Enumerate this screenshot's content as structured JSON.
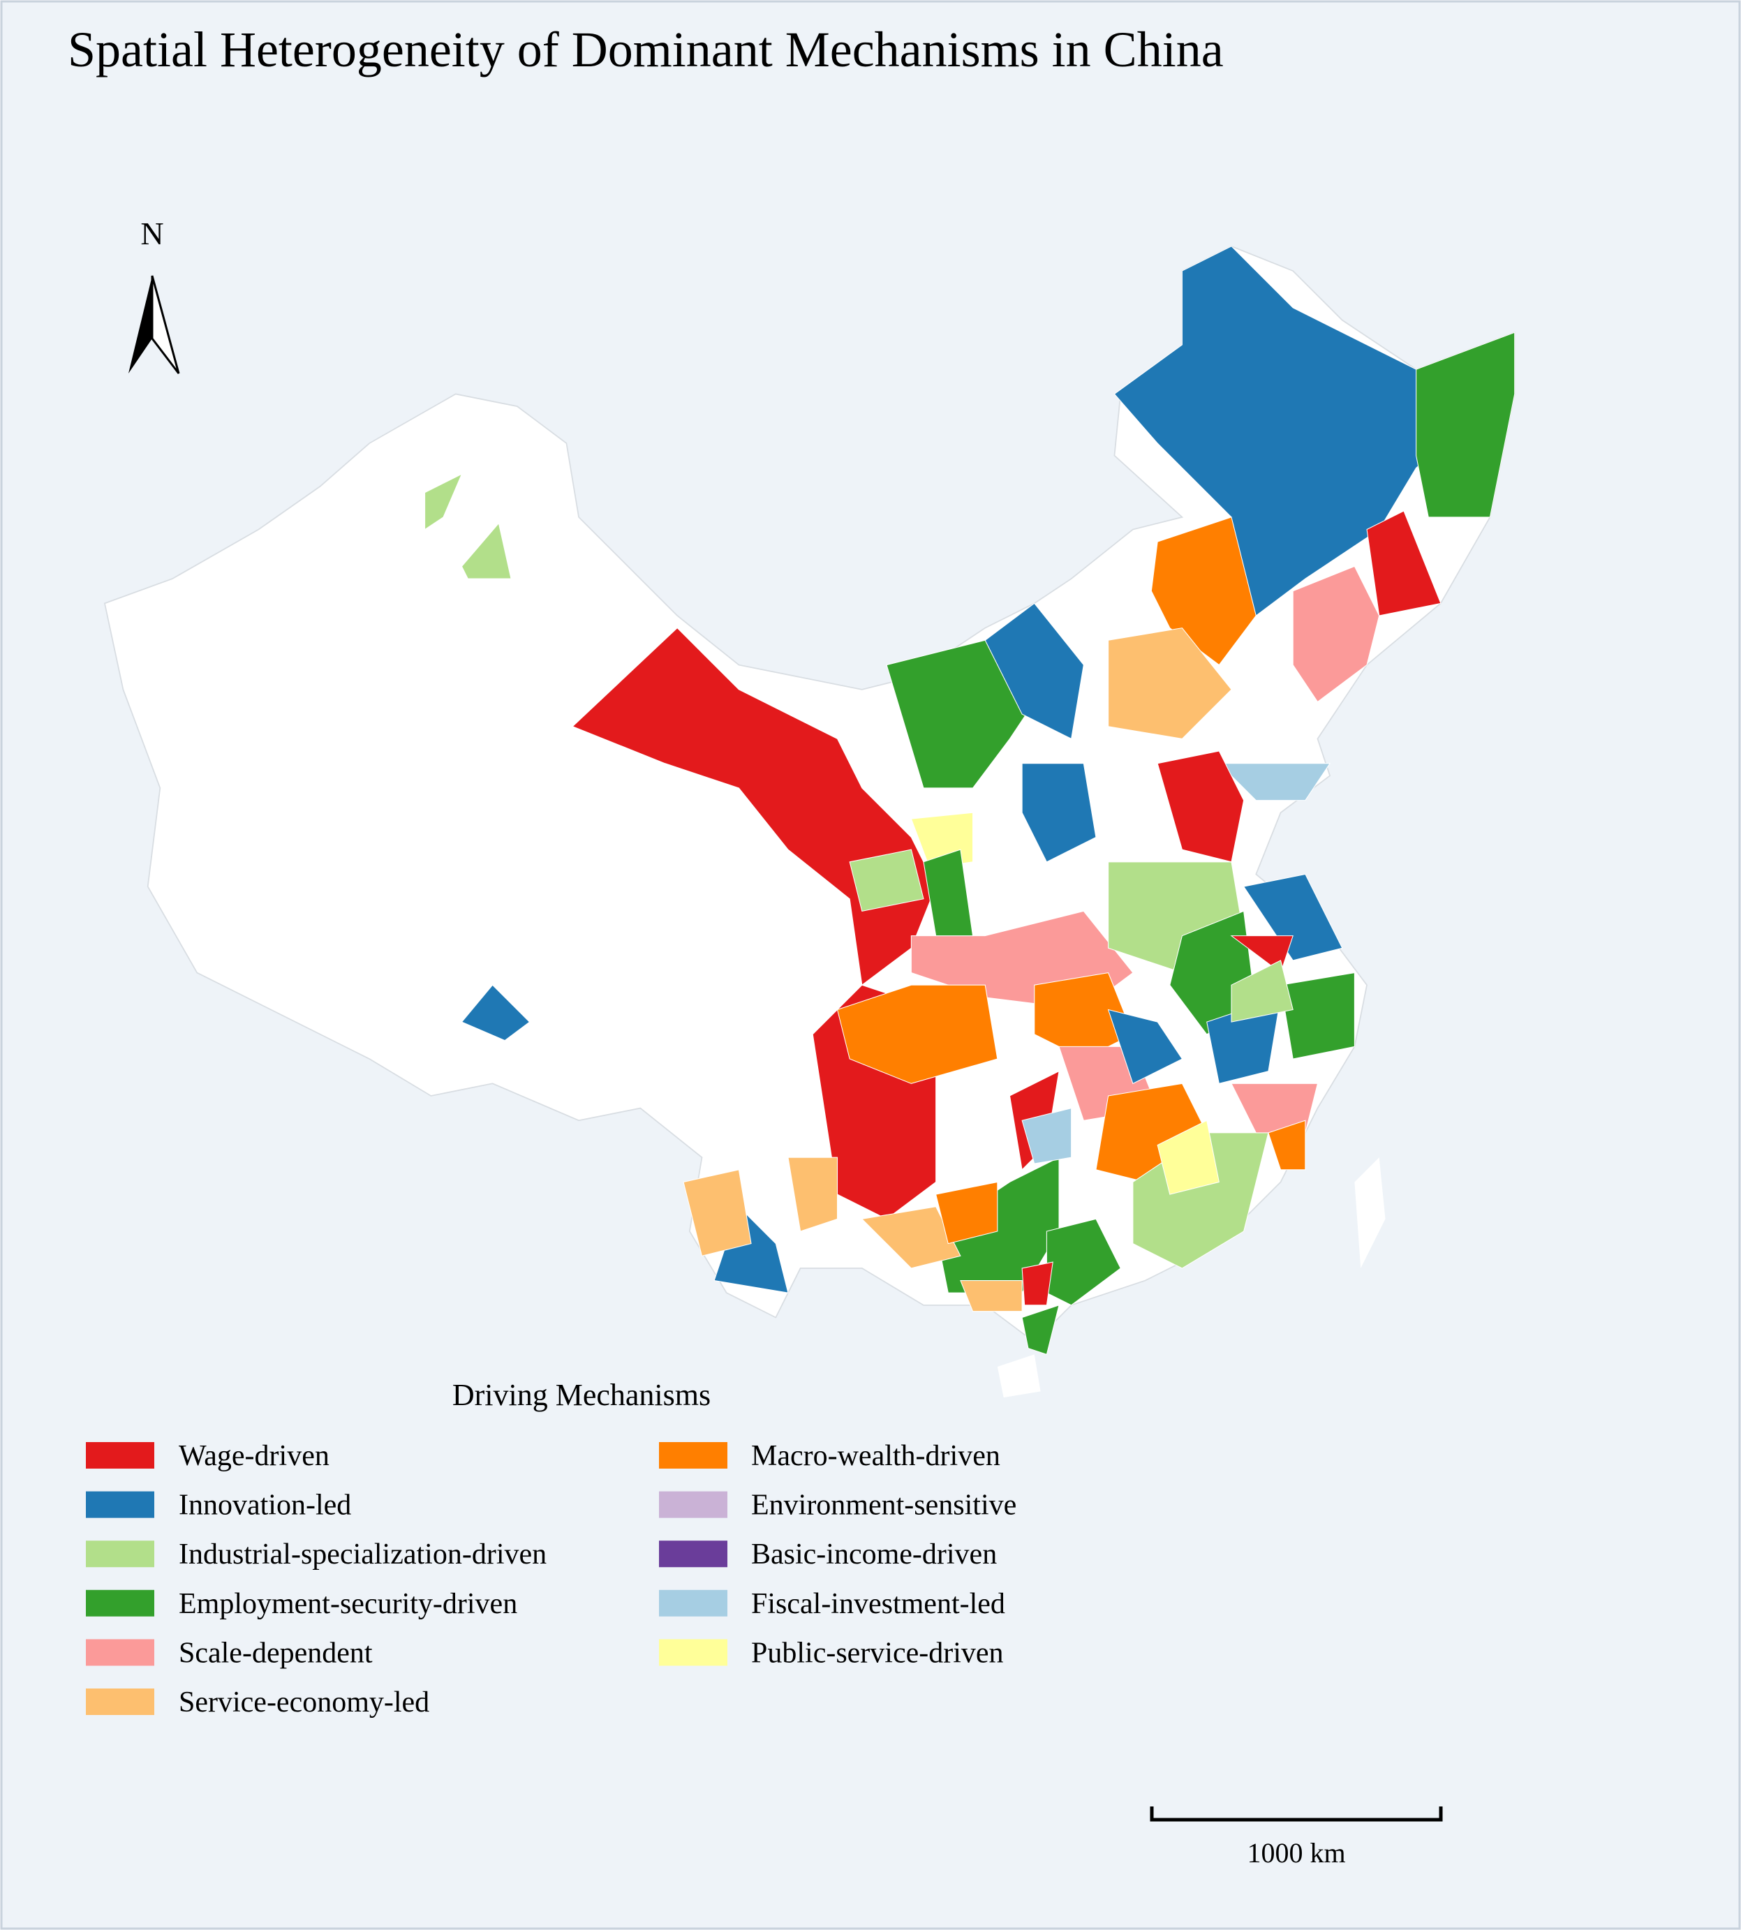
{
  "title": "Spatial Heterogeneity of Dominant Mechanisms in China",
  "north_label": "N",
  "legend": {
    "title": "Driving Mechanisms",
    "items": [
      {
        "label": "Wage-driven",
        "color": "#e31a1c"
      },
      {
        "label": "Innovation-led",
        "color": "#1f78b4"
      },
      {
        "label": "Industrial-specialization-driven",
        "color": "#b2df8a"
      },
      {
        "label": "Employment-security-driven",
        "color": "#33a02c"
      },
      {
        "label": "Scale-dependent",
        "color": "#fb9a99"
      },
      {
        "label": "Service-economy-led",
        "color": "#fdbf6f"
      },
      {
        "label": "Macro-wealth-driven",
        "color": "#ff7f00"
      },
      {
        "label": "Environment-sensitive",
        "color": "#cab2d6"
      },
      {
        "label": "Basic-income-driven",
        "color": "#6a3d9a"
      },
      {
        "label": "Fiscal-investment-led",
        "color": "#a6cee3"
      },
      {
        "label": "Public-service-driven",
        "color": "#ffff99"
      }
    ]
  },
  "scale_bar": {
    "label": "1000 km"
  }
}
